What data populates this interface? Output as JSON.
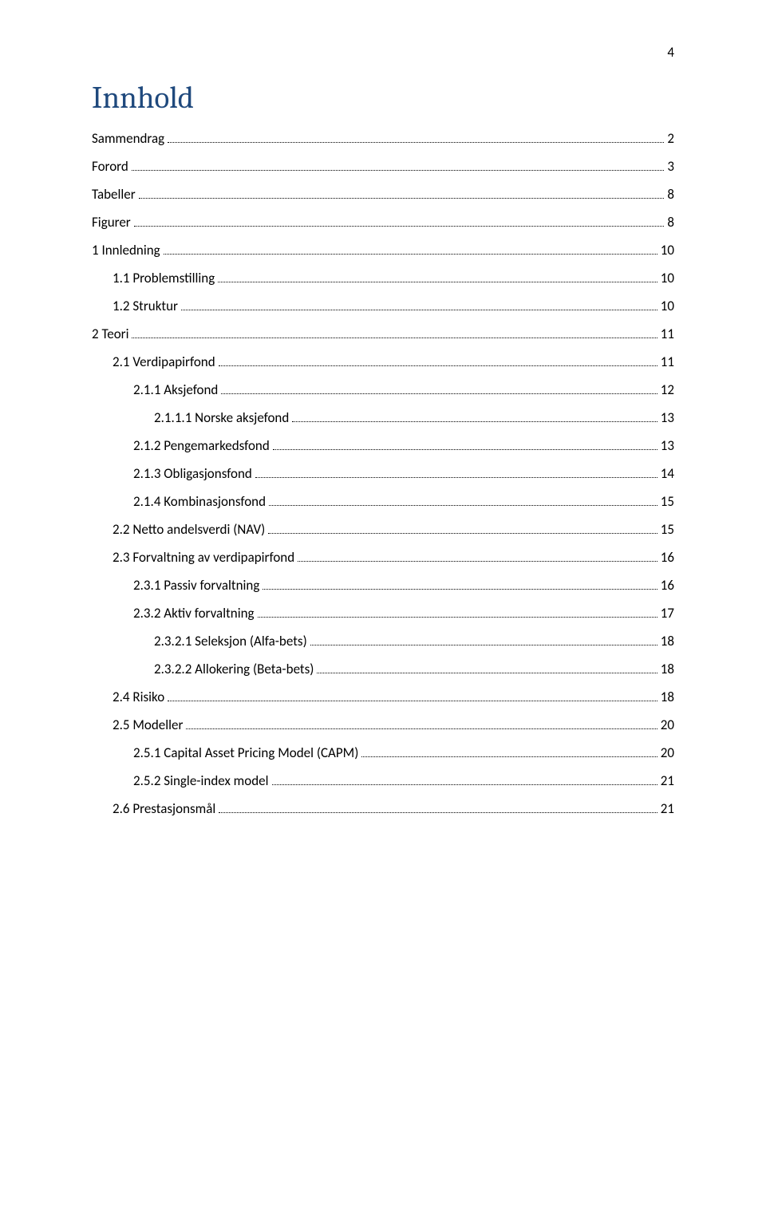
{
  "page_number": "4",
  "title": "Innhold",
  "title_color": "#1f497d",
  "text_color": "#000000",
  "background_color": "#ffffff",
  "font_family_body": "Calibri",
  "font_family_title": "Cambria",
  "title_fontsize": 39,
  "body_fontsize": 17,
  "toc": [
    {
      "label": "Sammendrag",
      "page": "2",
      "level": 0
    },
    {
      "label": "Forord",
      "page": "3",
      "level": 0
    },
    {
      "label": "Tabeller",
      "page": "8",
      "level": 0
    },
    {
      "label": "Figurer",
      "page": "8",
      "level": 0
    },
    {
      "label": "1 Innledning",
      "page": "10",
      "level": 0
    },
    {
      "label": "1.1 Problemstilling",
      "page": "10",
      "level": 1
    },
    {
      "label": "1.2 Struktur",
      "page": "10",
      "level": 1
    },
    {
      "label": "2 Teori",
      "page": "11",
      "level": 0
    },
    {
      "label": "2.1 Verdipapirfond",
      "page": "11",
      "level": 1
    },
    {
      "label": "2.1.1 Aksjefond",
      "page": "12",
      "level": 2
    },
    {
      "label": "2.1.1.1 Norske aksjefond",
      "page": "13",
      "level": 3
    },
    {
      "label": "2.1.2 Pengemarkedsfond",
      "page": "13",
      "level": 2
    },
    {
      "label": "2.1.3 Obligasjonsfond",
      "page": "14",
      "level": 2
    },
    {
      "label": "2.1.4 Kombinasjonsfond",
      "page": "15",
      "level": 2
    },
    {
      "label": "2.2 Netto andelsverdi (NAV)",
      "page": "15",
      "level": 1
    },
    {
      "label": "2.3 Forvaltning av verdipapirfond",
      "page": "16",
      "level": 1
    },
    {
      "label": "2.3.1 Passiv forvaltning",
      "page": "16",
      "level": 2
    },
    {
      "label": "2.3.2 Aktiv forvaltning",
      "page": "17",
      "level": 2
    },
    {
      "label": "2.3.2.1 Seleksjon (Alfa-bets)",
      "page": "18",
      "level": 3
    },
    {
      "label": "2.3.2.2 Allokering (Beta-bets)",
      "page": "18",
      "level": 3
    },
    {
      "label": "2.4 Risiko",
      "page": "18",
      "level": 1
    },
    {
      "label": "2.5 Modeller",
      "page": "20",
      "level": 1
    },
    {
      "label": "2.5.1 Capital Asset Pricing Model (CAPM)",
      "page": "20",
      "level": 2
    },
    {
      "label": "2.5.2 Single-index model",
      "page": "21",
      "level": 2
    },
    {
      "label": "2.6 Prestasjonsmål",
      "page": "21",
      "level": 1
    }
  ]
}
